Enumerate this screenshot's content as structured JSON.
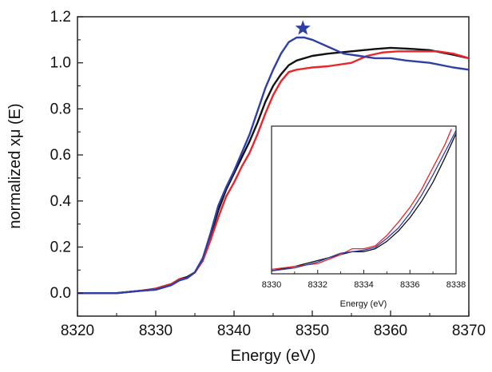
{
  "chart_data": [
    {
      "type": "line",
      "xlabel": "Energy (eV)",
      "ylabel": "normalized xμ (E)",
      "xlim": [
        8320,
        8370
      ],
      "ylim": [
        -0.1,
        1.2
      ],
      "xticks": [
        8320,
        8330,
        8340,
        8350,
        8360,
        8370
      ],
      "xtick_labels": [
        "8320",
        "8330",
        "8340",
        "8350",
        "8360",
        "8370"
      ],
      "yticks": [
        0.0,
        0.2,
        0.4,
        0.6,
        0.8,
        1.0,
        1.2
      ],
      "ytick_labels": [
        "0.0",
        "0.2",
        "0.4",
        "0.6",
        "0.8",
        "1.0",
        "1.2"
      ],
      "grid": false,
      "legend": "none",
      "series": [
        {
          "color": "#111111",
          "points": [
            [
              8320,
              0.0
            ],
            [
              8325,
              0.0
            ],
            [
              8328,
              0.01
            ],
            [
              8330,
              0.015
            ],
            [
              8332,
              0.035
            ],
            [
              8333,
              0.06
            ],
            [
              8334,
              0.07
            ],
            [
              8335,
              0.09
            ],
            [
              8336,
              0.15
            ],
            [
              8337,
              0.25
            ],
            [
              8338,
              0.36
            ],
            [
              8339,
              0.45
            ],
            [
              8340,
              0.52
            ],
            [
              8341,
              0.59
            ],
            [
              8342,
              0.66
            ],
            [
              8343,
              0.74
            ],
            [
              8344,
              0.83
            ],
            [
              8345,
              0.9
            ],
            [
              8346,
              0.95
            ],
            [
              8347,
              0.99
            ],
            [
              8348,
              1.01
            ],
            [
              8350,
              1.03
            ],
            [
              8352,
              1.04
            ],
            [
              8355,
              1.05
            ],
            [
              8358,
              1.06
            ],
            [
              8360,
              1.065
            ],
            [
              8363,
              1.06
            ],
            [
              8365,
              1.055
            ],
            [
              8368,
              1.035
            ],
            [
              8370,
              1.02
            ]
          ]
        },
        {
          "color": "#e8262b",
          "points": [
            [
              8320,
              0.0
            ],
            [
              8325,
              0.0
            ],
            [
              8328,
              0.01
            ],
            [
              8330,
              0.02
            ],
            [
              8332,
              0.04
            ],
            [
              8333,
              0.06
            ],
            [
              8334,
              0.065
            ],
            [
              8335,
              0.09
            ],
            [
              8336,
              0.14
            ],
            [
              8337,
              0.23
            ],
            [
              8338,
              0.33
            ],
            [
              8339,
              0.42
            ],
            [
              8340,
              0.48
            ],
            [
              8341,
              0.55
            ],
            [
              8342,
              0.61
            ],
            [
              8343,
              0.69
            ],
            [
              8344,
              0.78
            ],
            [
              8345,
              0.86
            ],
            [
              8346,
              0.92
            ],
            [
              8347,
              0.96
            ],
            [
              8348,
              0.97
            ],
            [
              8350,
              0.98
            ],
            [
              8352,
              0.985
            ],
            [
              8355,
              1.0
            ],
            [
              8357,
              1.03
            ],
            [
              8359,
              1.045
            ],
            [
              8361,
              1.05
            ],
            [
              8364,
              1.05
            ],
            [
              8366,
              1.05
            ],
            [
              8368,
              1.04
            ],
            [
              8370,
              1.02
            ]
          ]
        },
        {
          "color": "#2e3fa6",
          "points": [
            [
              8320,
              0.0
            ],
            [
              8325,
              0.0
            ],
            [
              8328,
              0.01
            ],
            [
              8330,
              0.015
            ],
            [
              8332,
              0.035
            ],
            [
              8333,
              0.055
            ],
            [
              8334,
              0.065
            ],
            [
              8335,
              0.09
            ],
            [
              8336,
              0.15
            ],
            [
              8337,
              0.26
            ],
            [
              8338,
              0.38
            ],
            [
              8339,
              0.46
            ],
            [
              8340,
              0.53
            ],
            [
              8341,
              0.61
            ],
            [
              8342,
              0.69
            ],
            [
              8343,
              0.79
            ],
            [
              8344,
              0.89
            ],
            [
              8345,
              0.97
            ],
            [
              8346,
              1.04
            ],
            [
              8347,
              1.09
            ],
            [
              8348,
              1.11
            ],
            [
              8349,
              1.11
            ],
            [
              8350,
              1.1
            ],
            [
              8352,
              1.07
            ],
            [
              8354,
              1.04
            ],
            [
              8356,
              1.03
            ],
            [
              8358,
              1.02
            ],
            [
              8360,
              1.02
            ],
            [
              8362,
              1.01
            ],
            [
              8365,
              1.0
            ],
            [
              8368,
              0.98
            ],
            [
              8370,
              0.97
            ]
          ]
        }
      ],
      "annotations": [
        {
          "type": "star-marker",
          "x": 8348.8,
          "y": 1.15,
          "color": "#2e3fa6"
        }
      ]
    },
    {
      "type": "line",
      "xlabel": "Energy (eV)",
      "ylabel": "",
      "xlim": [
        8330,
        8338
      ],
      "ylim": [
        0.0,
        1.0
      ],
      "xticks": [
        8330,
        8332,
        8334,
        8336,
        8338
      ],
      "xtick_labels": [
        "8330",
        "8332",
        "8334",
        "8336",
        "8338"
      ],
      "yticks": [],
      "grid": false,
      "legend": "none",
      "series": [
        {
          "color": "#111111",
          "points": [
            [
              8330,
              0.02
            ],
            [
              8331,
              0.05
            ],
            [
              8332,
              0.09
            ],
            [
              8333,
              0.13
            ],
            [
              8333.5,
              0.15
            ],
            [
              8334,
              0.15
            ],
            [
              8334.5,
              0.17
            ],
            [
              8335,
              0.22
            ],
            [
              8335.5,
              0.29
            ],
            [
              8336,
              0.38
            ],
            [
              8336.5,
              0.49
            ],
            [
              8337,
              0.62
            ],
            [
              8337.5,
              0.78
            ],
            [
              8338,
              0.95
            ]
          ]
        },
        {
          "color": "#e8262b",
          "points": [
            [
              8330,
              0.03
            ],
            [
              8331,
              0.05
            ],
            [
              8332,
              0.07
            ],
            [
              8332.5,
              0.1
            ],
            [
              8333,
              0.13
            ],
            [
              8333.5,
              0.17
            ],
            [
              8334,
              0.17
            ],
            [
              8334.5,
              0.19
            ],
            [
              8335,
              0.26
            ],
            [
              8335.5,
              0.35
            ],
            [
              8336,
              0.45
            ],
            [
              8336.5,
              0.57
            ],
            [
              8337,
              0.72
            ],
            [
              8337.5,
              0.87
            ],
            [
              8337.8,
              0.98
            ]
          ]
        },
        {
          "color": "#2e3fa6",
          "points": [
            [
              8330,
              0.02
            ],
            [
              8331,
              0.04
            ],
            [
              8332,
              0.08
            ],
            [
              8332.5,
              0.11
            ],
            [
              8333,
              0.14
            ],
            [
              8333.5,
              0.15
            ],
            [
              8334,
              0.16
            ],
            [
              8334.5,
              0.18
            ],
            [
              8335,
              0.24
            ],
            [
              8335.5,
              0.31
            ],
            [
              8336,
              0.41
            ],
            [
              8336.5,
              0.53
            ],
            [
              8337,
              0.67
            ],
            [
              8337.5,
              0.82
            ],
            [
              8338,
              0.97
            ]
          ]
        }
      ]
    }
  ]
}
